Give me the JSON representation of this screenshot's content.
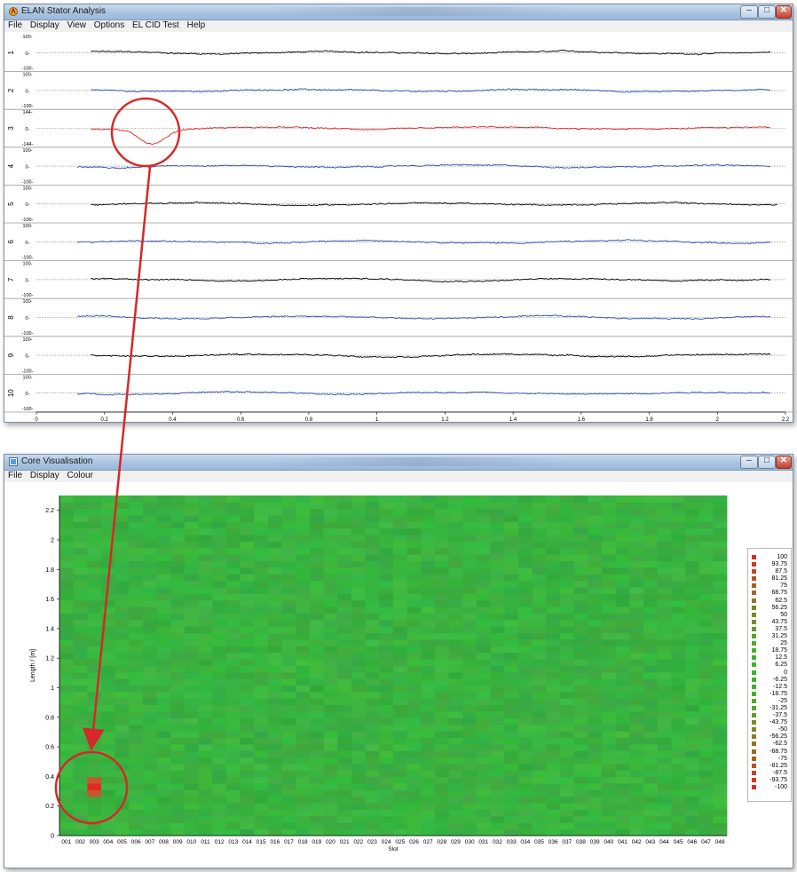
{
  "window1": {
    "title": "ELAN Stator Analysis",
    "menu": [
      {
        "label": "File"
      },
      {
        "label": "Display"
      },
      {
        "label": "View"
      },
      {
        "label": "Options"
      },
      {
        "label": "EL CID Test"
      },
      {
        "label": "Help"
      }
    ],
    "buttons": {
      "minimize": "–",
      "maximize": "□",
      "close": "✕"
    }
  },
  "window2": {
    "title": "Core Visualisation",
    "menu": [
      {
        "label": "File"
      },
      {
        "label": "Display"
      },
      {
        "label": "Colour"
      }
    ],
    "buttons": {
      "minimize": "–",
      "maximize": "□",
      "close": "✕"
    }
  },
  "chart_data": [
    {
      "type": "line",
      "channels": [
        {
          "name": "1",
          "ticks": [
            "100-",
            "0-",
            "-100-"
          ],
          "color": "#000000"
        },
        {
          "name": "2",
          "ticks": [
            "100-",
            "0-",
            "-100-"
          ],
          "color": "#2e4fb0"
        },
        {
          "name": "3",
          "ticks": [
            "144-",
            "0-",
            "-144-"
          ],
          "color": "#e02020"
        },
        {
          "name": "4",
          "ticks": [
            "100-",
            "0-",
            "-100-"
          ],
          "color": "#2e4fb0"
        },
        {
          "name": "5",
          "ticks": [
            "100-",
            "0-",
            "-100-"
          ],
          "color": "#000000"
        },
        {
          "name": "6",
          "ticks": [
            "100-",
            "0-",
            "-100-"
          ],
          "color": "#2e4fb0"
        },
        {
          "name": "7",
          "ticks": [
            "100-",
            "0-",
            "-100-"
          ],
          "color": "#000000"
        },
        {
          "name": "8",
          "ticks": [
            "100-",
            "0-",
            "-100-"
          ],
          "color": "#2e4fb0"
        },
        {
          "name": "9",
          "ticks": [
            "100-",
            "0-",
            "-100-"
          ],
          "color": "#000000"
        },
        {
          "name": "10",
          "ticks": [
            "100-",
            "0-",
            "-100-"
          ],
          "color": "#2e4fb0"
        }
      ],
      "xticks": [
        "0",
        "0.2",
        "0.4",
        "0.6",
        "0.8",
        "1",
        "1.2",
        "1.4",
        "1.6",
        "1.8",
        "2",
        "2.2"
      ],
      "xlim": [
        0,
        2.2
      ],
      "fault": {
        "channel": "3",
        "x": 0.34,
        "depth": -100
      }
    },
    {
      "type": "heatmap",
      "ylabel": "Length / [m]",
      "xlabel": "Slot",
      "yticks": [
        "0",
        "0.2",
        "0.4",
        "0.6",
        "0.8",
        "1",
        "1.2",
        "1.4",
        "1.6",
        "1.8",
        "2",
        "2.2"
      ],
      "ylim": [
        0,
        2.3
      ],
      "slots": [
        "001",
        "002",
        "003",
        "004",
        "005",
        "006",
        "007",
        "008",
        "009",
        "010",
        "011",
        "012",
        "013",
        "014",
        "015",
        "016",
        "017",
        "018",
        "019",
        "020",
        "021",
        "022",
        "023",
        "024",
        "025",
        "026",
        "027",
        "028",
        "029",
        "030",
        "031",
        "032",
        "033",
        "034",
        "035",
        "036",
        "037",
        "038",
        "039",
        "040",
        "041",
        "042",
        "043",
        "044",
        "045",
        "046",
        "047",
        "048"
      ],
      "hotspot": {
        "slot": "003",
        "length": 0.33,
        "value": -100
      },
      "legend": [
        "100",
        "93.75",
        "87.5",
        "81.25",
        "75",
        "68.75",
        "62.5",
        "56.25",
        "50",
        "43.75",
        "37.5",
        "31.25",
        "25",
        "18.75",
        "12.5",
        "6.25",
        "0",
        "-6.25",
        "-12.5",
        "-18.75",
        "-25",
        "-31.25",
        "-37.5",
        "-43.75",
        "-50",
        "-56.25",
        "-62.5",
        "-68.75",
        "-75",
        "-81.25",
        "-87.5",
        "-93.75",
        "-100"
      ],
      "legend_colors": {
        "high": "#e02020",
        "mid": "#34b82c",
        "low": "#e02020"
      }
    }
  ],
  "annotation": {
    "color": "#d62828"
  }
}
